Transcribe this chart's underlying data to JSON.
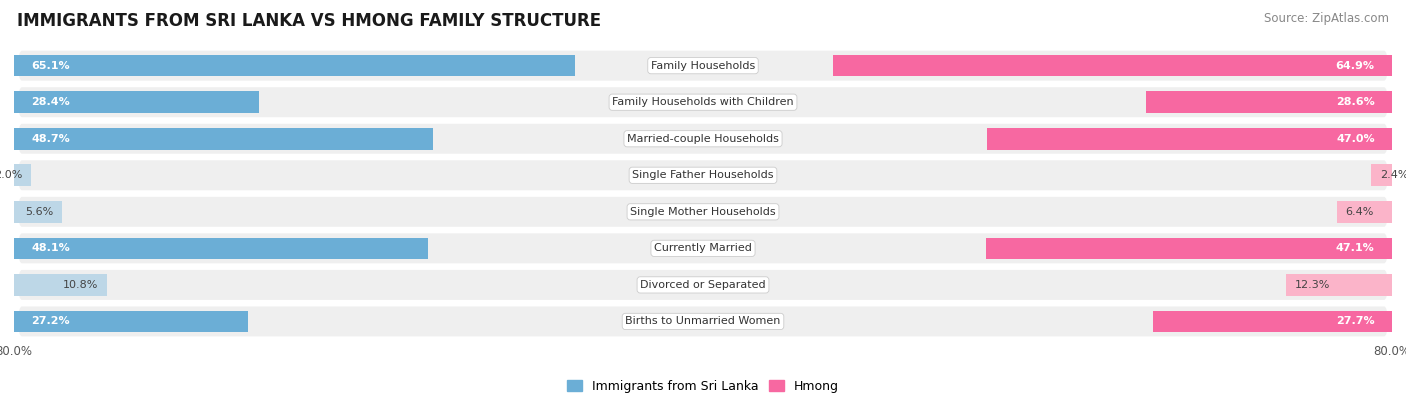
{
  "title": "IMMIGRANTS FROM SRI LANKA VS HMONG FAMILY STRUCTURE",
  "source": "Source: ZipAtlas.com",
  "categories": [
    "Family Households",
    "Family Households with Children",
    "Married-couple Households",
    "Single Father Households",
    "Single Mother Households",
    "Currently Married",
    "Divorced or Separated",
    "Births to Unmarried Women"
  ],
  "sri_lanka_values": [
    65.1,
    28.4,
    48.7,
    2.0,
    5.6,
    48.1,
    10.8,
    27.2
  ],
  "hmong_values": [
    64.9,
    28.6,
    47.0,
    2.4,
    6.4,
    47.1,
    12.3,
    27.7
  ],
  "sri_lanka_color": "#6baed6",
  "hmong_color": "#f768a1",
  "sri_lanka_color_light": "#bdd7e7",
  "hmong_color_light": "#fbb4c9",
  "axis_max": 80.0,
  "row_bg_color": "#efefef",
  "title_fontsize": 12,
  "source_fontsize": 8.5,
  "bar_label_fontsize": 8,
  "category_fontsize": 8,
  "legend_fontsize": 9,
  "axis_label_fontsize": 8.5
}
